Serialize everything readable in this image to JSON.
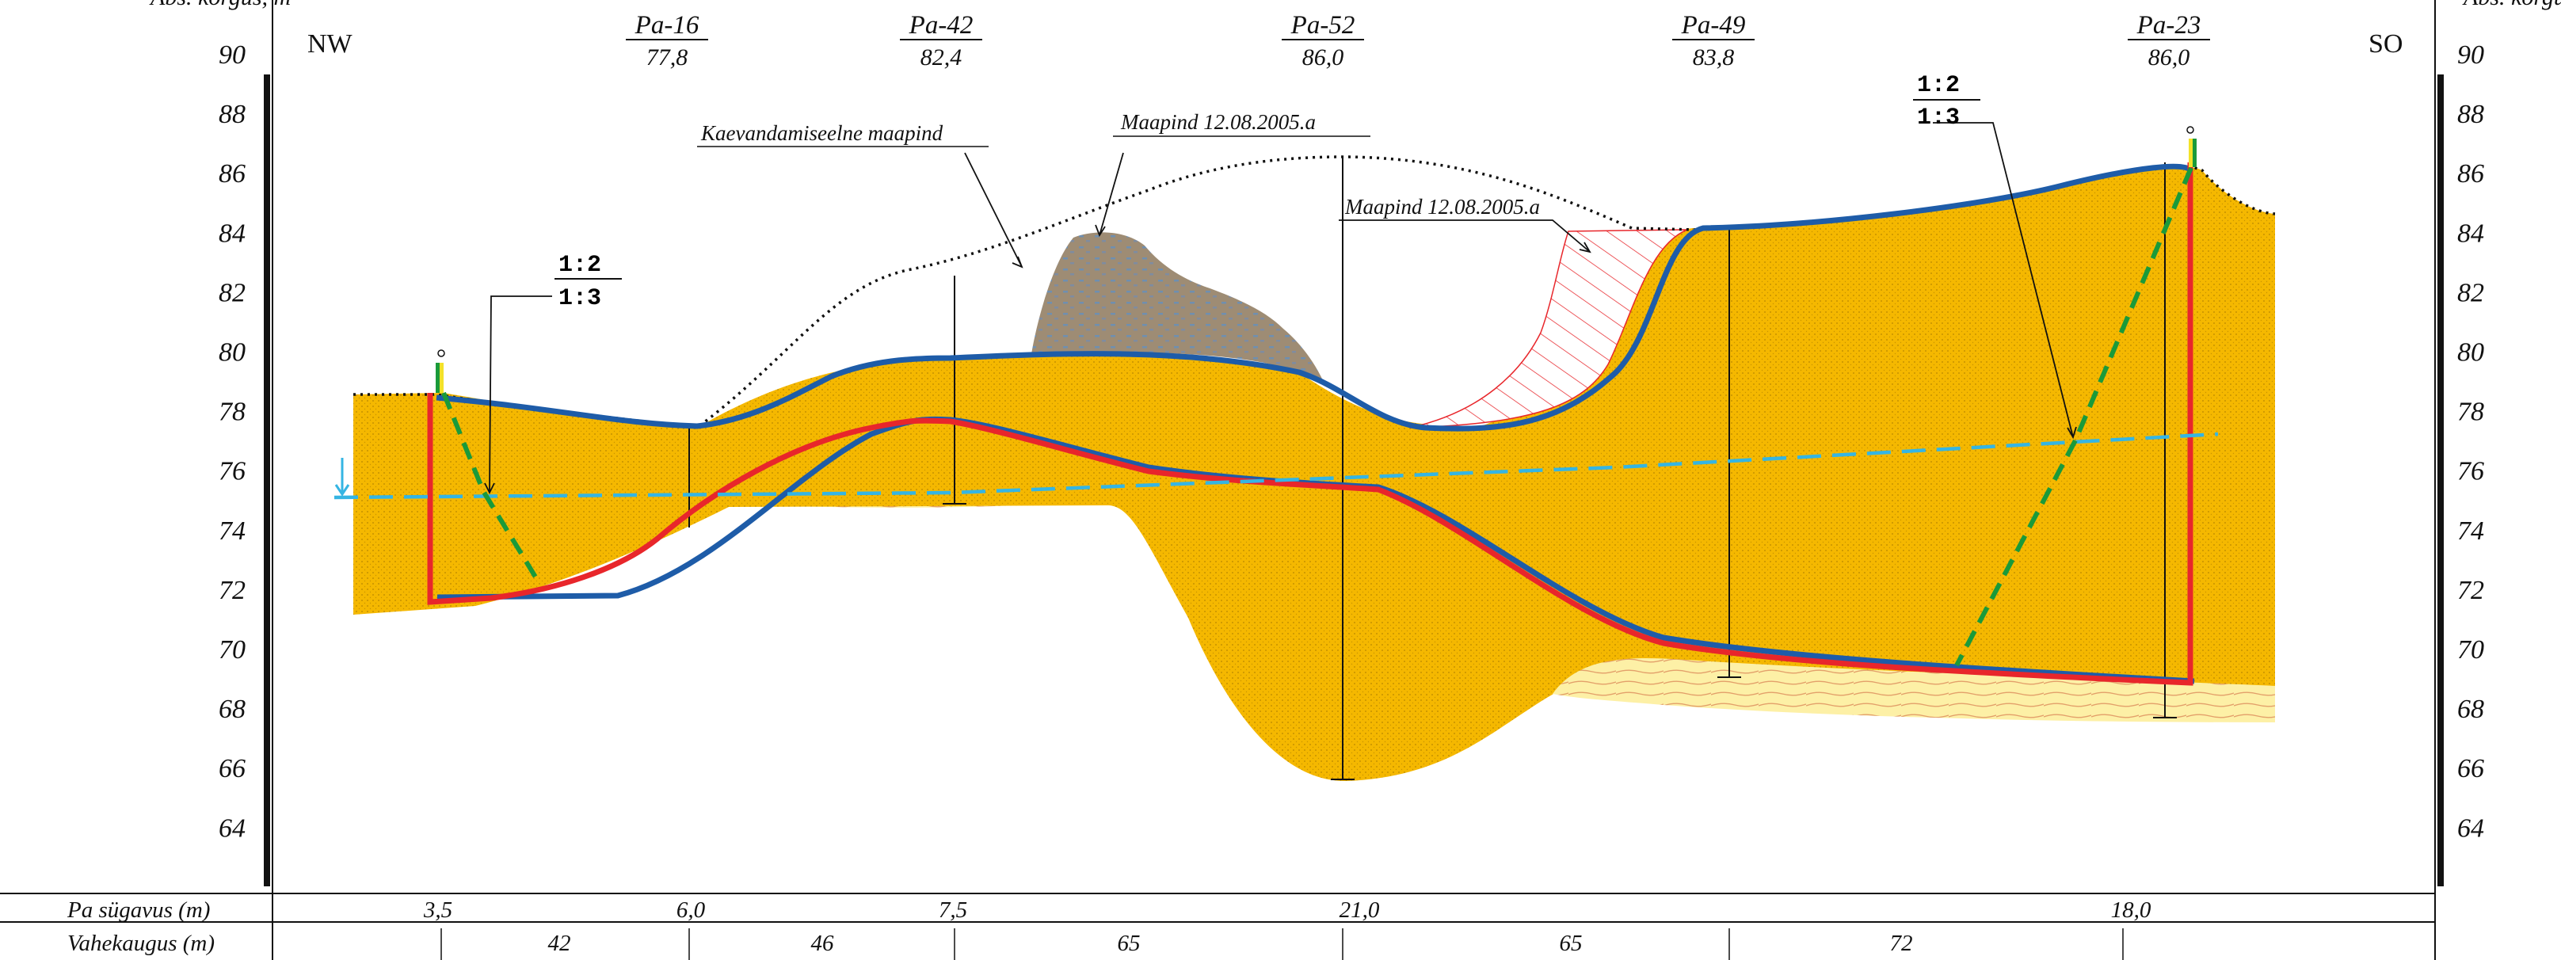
{
  "axis": {
    "left_title": "Abs. kõrgus, m",
    "right_title": "Abs. kõrgus, m",
    "ticks": [
      "90",
      "88",
      "86",
      "84",
      "82",
      "80",
      "78",
      "76",
      "74",
      "72",
      "70",
      "68",
      "66",
      "64"
    ]
  },
  "directions": {
    "left": "NW",
    "right": "SO"
  },
  "boreholes": [
    {
      "name": "Pa-16",
      "elev": "77,8"
    },
    {
      "name": "Pa-42",
      "elev": "82,4"
    },
    {
      "name": "Pa-52",
      "elev": "86,0"
    },
    {
      "name": "Pa-49",
      "elev": "83,8"
    },
    {
      "name": "Pa-23",
      "elev": "86,0"
    }
  ],
  "annotations": {
    "pre_excavation": "Kaevandamiseelne maapind",
    "ground_1": "Maapind 12.08.2005.a",
    "ground_2": "Maapind 12.08.2005.a"
  },
  "slopes": {
    "left": {
      "top": "1:2",
      "bottom": "1:3"
    },
    "right": {
      "top": "1:2",
      "bottom": "1:3"
    }
  },
  "table": {
    "depth_label": "Pa sügavus (m)",
    "depth_values": [
      "3,5",
      "6,0",
      "7,5",
      "21,0",
      "18,0"
    ],
    "distance_label": "Vahekaugus (m)",
    "distance_values": [
      "42",
      "46",
      "65",
      "65",
      "72"
    ]
  },
  "colors": {
    "sand": "#f5b800",
    "sand_light": "#fdf0a6",
    "fill_soil": "#9e8c74",
    "design_line": "#e8262b",
    "ground_line": "#1e5ca8",
    "water_line": "#35b5e3",
    "slope_line": "#1a9a3a"
  }
}
